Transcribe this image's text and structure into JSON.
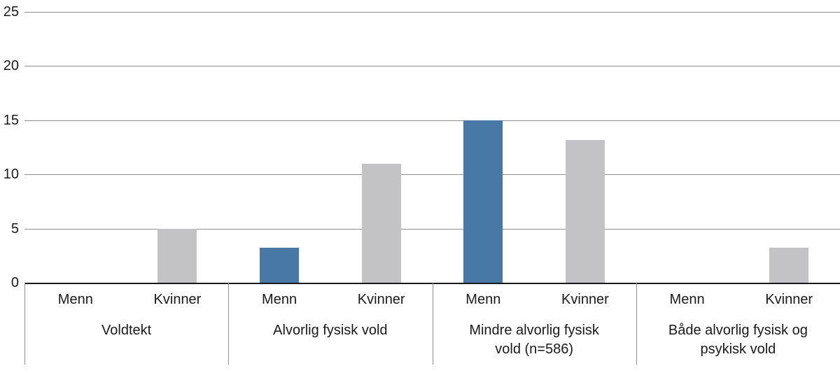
{
  "chart_data": {
    "type": "bar",
    "title": "",
    "categories": [
      "Voldtekt",
      "Alvorlig fysisk vold",
      "Mindre alvorlig fysisk vold (n=586)",
      "Både alvorlig fysisk og psykisk vold"
    ],
    "sub_labels": [
      "Menn",
      "Kvinner"
    ],
    "series": [
      {
        "name": "Menn",
        "color": "#4878a6",
        "values": [
          0,
          3.2,
          15,
          0
        ]
      },
      {
        "name": "Kvinner",
        "color": "#c3c3c5",
        "values": [
          5,
          11,
          13.2,
          3.2
        ]
      }
    ],
    "yticks": [
      0,
      5,
      10,
      15,
      20,
      25
    ],
    "ylim": [
      0,
      25
    ],
    "grid": true,
    "legend_position": "none",
    "colors": {
      "background": "#ffffff",
      "gridline": "#8e8e8e",
      "baseline": "#1a1a1a",
      "separator": "#8e8e8e",
      "text": "#1a1a1a"
    }
  }
}
